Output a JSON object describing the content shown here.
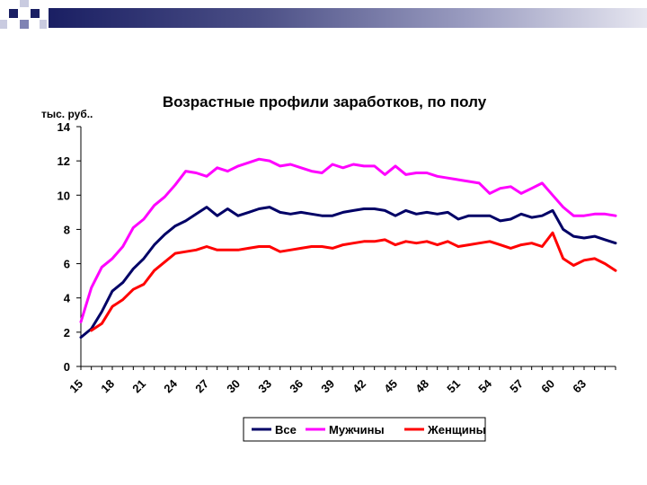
{
  "colors": {
    "deco_dark": "#1a1f63",
    "deco_mid": "#7f83b3",
    "deco_light": "#c9cbe0"
  },
  "chart_data": {
    "type": "line",
    "title": "Возрастные профили заработков, по полу",
    "ylabel": "тыс. руб..",
    "xlabel": "",
    "ylim": [
      0,
      14
    ],
    "xlim": [
      15,
      66
    ],
    "y_ticks": [
      "0",
      "2",
      "4",
      "6",
      "8",
      "10",
      "12",
      "14"
    ],
    "x_ticks": [
      "15",
      "18",
      "21",
      "24",
      "27",
      "30",
      "33",
      "36",
      "39",
      "42",
      "45",
      "48",
      "51",
      "54",
      "57",
      "60",
      "63"
    ],
    "grid": "none",
    "legend": "bottom",
    "series": [
      {
        "name": "Все",
        "color": "#000066",
        "x": [
          15,
          16,
          17,
          18,
          19,
          20,
          21,
          22,
          23,
          24,
          25,
          26,
          27,
          28,
          29,
          30,
          31,
          32,
          33,
          34,
          35,
          36,
          37,
          38,
          39,
          40,
          41,
          42,
          43,
          44,
          45,
          46,
          47,
          48,
          49,
          50,
          51,
          52,
          53,
          54,
          55,
          56,
          57,
          58,
          59,
          60,
          61,
          62,
          63,
          64,
          65,
          66
        ],
        "values": [
          1.7,
          2.2,
          3.2,
          4.4,
          4.9,
          5.7,
          6.3,
          7.1,
          7.7,
          8.2,
          8.5,
          8.9,
          9.3,
          8.8,
          9.2,
          8.8,
          9.0,
          9.2,
          9.3,
          9.0,
          8.9,
          9.0,
          8.9,
          8.8,
          8.8,
          9.0,
          9.1,
          9.2,
          9.2,
          9.1,
          8.8,
          9.1,
          8.9,
          9.0,
          8.9,
          9.0,
          8.6,
          8.8,
          8.8,
          8.8,
          8.5,
          8.6,
          8.9,
          8.7,
          8.8,
          9.1,
          8.0,
          7.6,
          7.5,
          7.6,
          7.4,
          7.2
        ]
      },
      {
        "name": "Мужчины",
        "color": "#ff00ff",
        "x": [
          15,
          16,
          17,
          18,
          19,
          20,
          21,
          22,
          23,
          24,
          25,
          26,
          27,
          28,
          29,
          30,
          31,
          32,
          33,
          34,
          35,
          36,
          37,
          38,
          39,
          40,
          41,
          42,
          43,
          44,
          45,
          46,
          47,
          48,
          49,
          50,
          51,
          52,
          53,
          54,
          55,
          56,
          57,
          58,
          59,
          60,
          61,
          62,
          63,
          64,
          65,
          66
        ],
        "values": [
          2.6,
          4.6,
          5.8,
          6.3,
          7.0,
          8.1,
          8.6,
          9.4,
          9.9,
          10.6,
          11.4,
          11.3,
          11.1,
          11.6,
          11.4,
          11.7,
          11.9,
          12.1,
          12.0,
          11.7,
          11.8,
          11.6,
          11.4,
          11.3,
          11.8,
          11.6,
          11.8,
          11.7,
          11.7,
          11.2,
          11.7,
          11.2,
          11.3,
          11.3,
          11.1,
          11.0,
          10.9,
          10.8,
          10.7,
          10.1,
          10.4,
          10.5,
          10.1,
          10.4,
          10.7,
          10.0,
          9.3,
          8.8,
          8.8,
          8.9,
          8.9,
          8.8
        ]
      },
      {
        "name": "Женщины",
        "color": "#ff0000",
        "x": [
          16,
          17,
          18,
          19,
          20,
          21,
          22,
          23,
          24,
          25,
          26,
          27,
          28,
          29,
          30,
          31,
          32,
          33,
          34,
          35,
          36,
          37,
          38,
          39,
          40,
          41,
          42,
          43,
          44,
          45,
          46,
          47,
          48,
          49,
          50,
          51,
          52,
          53,
          54,
          55,
          56,
          57,
          58,
          59,
          60,
          61,
          62,
          63,
          64,
          65,
          66
        ],
        "values": [
          2.1,
          2.5,
          3.5,
          3.9,
          4.5,
          4.8,
          5.6,
          6.1,
          6.6,
          6.7,
          6.8,
          7.0,
          6.8,
          6.8,
          6.8,
          6.9,
          7.0,
          7.0,
          6.7,
          6.8,
          6.9,
          7.0,
          7.0,
          6.9,
          7.1,
          7.2,
          7.3,
          7.3,
          7.4,
          7.1,
          7.3,
          7.2,
          7.3,
          7.1,
          7.3,
          7.0,
          7.1,
          7.2,
          7.3,
          7.1,
          6.9,
          7.1,
          7.2,
          7.0,
          7.8,
          6.3,
          5.9,
          6.2,
          6.3,
          6.0,
          5.6
        ]
      }
    ]
  }
}
